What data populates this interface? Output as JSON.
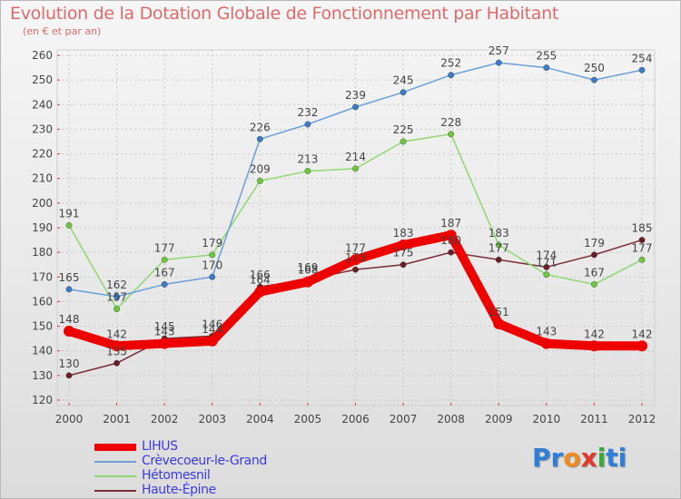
{
  "title": "Evolution de la Dotation Globale de Fonctionnement par Habitant",
  "subtitle": "(en € et par an)",
  "logo": {
    "letters": [
      "P",
      "r",
      "o",
      "x",
      "i",
      "t",
      "i"
    ],
    "colors": [
      "#2f7fd8",
      "#2f7fd8",
      "#f08a1e",
      "#e23a2a",
      "#3aa83a",
      "#2f7fd8",
      "#2f7fd8"
    ]
  },
  "chart_data": {
    "type": "line",
    "title": "Evolution de la Dotation Globale de Fonctionnement par Habitant",
    "ylabel": "(en € et par an)",
    "xlabel": "",
    "x": [
      "2000",
      "2001",
      "2002",
      "2003",
      "2004",
      "2005",
      "2006",
      "2007",
      "2008",
      "2009",
      "2010",
      "2011",
      "2012"
    ],
    "ylim": [
      120,
      260
    ],
    "yticks": [
      "120",
      "130",
      "140",
      "150",
      "160",
      "170",
      "180",
      "190",
      "200",
      "210",
      "220",
      "230",
      "240",
      "250",
      "260"
    ],
    "grid": true,
    "legend_position": "bottom-left",
    "series": [
      {
        "name": "Haute-Épine",
        "color": "#7a2f35",
        "marker": "#6b1f25",
        "values": [
          130,
          135,
          145,
          146,
          166,
          169,
          173,
          175,
          180,
          177,
          174,
          179,
          185
        ],
        "labels": [
          "130",
          "135",
          "145",
          "146",
          "166",
          "169",
          "173",
          "175",
          "180",
          "177",
          "174",
          "179",
          "185"
        ]
      },
      {
        "name": "Hétomesnil",
        "color": "#8fd870",
        "marker": "#6ec83e",
        "values": [
          191,
          157,
          177,
          179,
          209,
          213,
          214,
          225,
          228,
          183,
          171,
          167,
          177
        ],
        "labels": [
          "191",
          "157",
          "177",
          "179",
          "209",
          "213",
          "214",
          "225",
          "228",
          "183",
          "171",
          "167",
          "177"
        ]
      },
      {
        "name": "Crèvecoeur-le-Grand",
        "color": "#6a9fd8",
        "marker": "#3a7cc8",
        "values": [
          165,
          162,
          167,
          170,
          226,
          232,
          239,
          245,
          252,
          257,
          255,
          250,
          254
        ],
        "labels": [
          "165",
          "162",
          "167",
          "170",
          "226",
          "232",
          "239",
          "245",
          "252",
          "257",
          "255",
          "250",
          "254"
        ]
      },
      {
        "name": "LIHUS",
        "color": "#ee0000",
        "marker": "#ee0000",
        "values": [
          148,
          142,
          143,
          144,
          164,
          168,
          177,
          183,
          187,
          151,
          143,
          142,
          142
        ],
        "labels": [
          "148",
          "142",
          "143",
          "144",
          "164",
          "168",
          "177",
          "183",
          "187",
          "151",
          "143",
          "142",
          "142"
        ]
      }
    ],
    "legend": [
      "LIHUS",
      "Crèvecoeur-le-Grand",
      "Hétomesnil",
      "Haute-Épine"
    ]
  }
}
